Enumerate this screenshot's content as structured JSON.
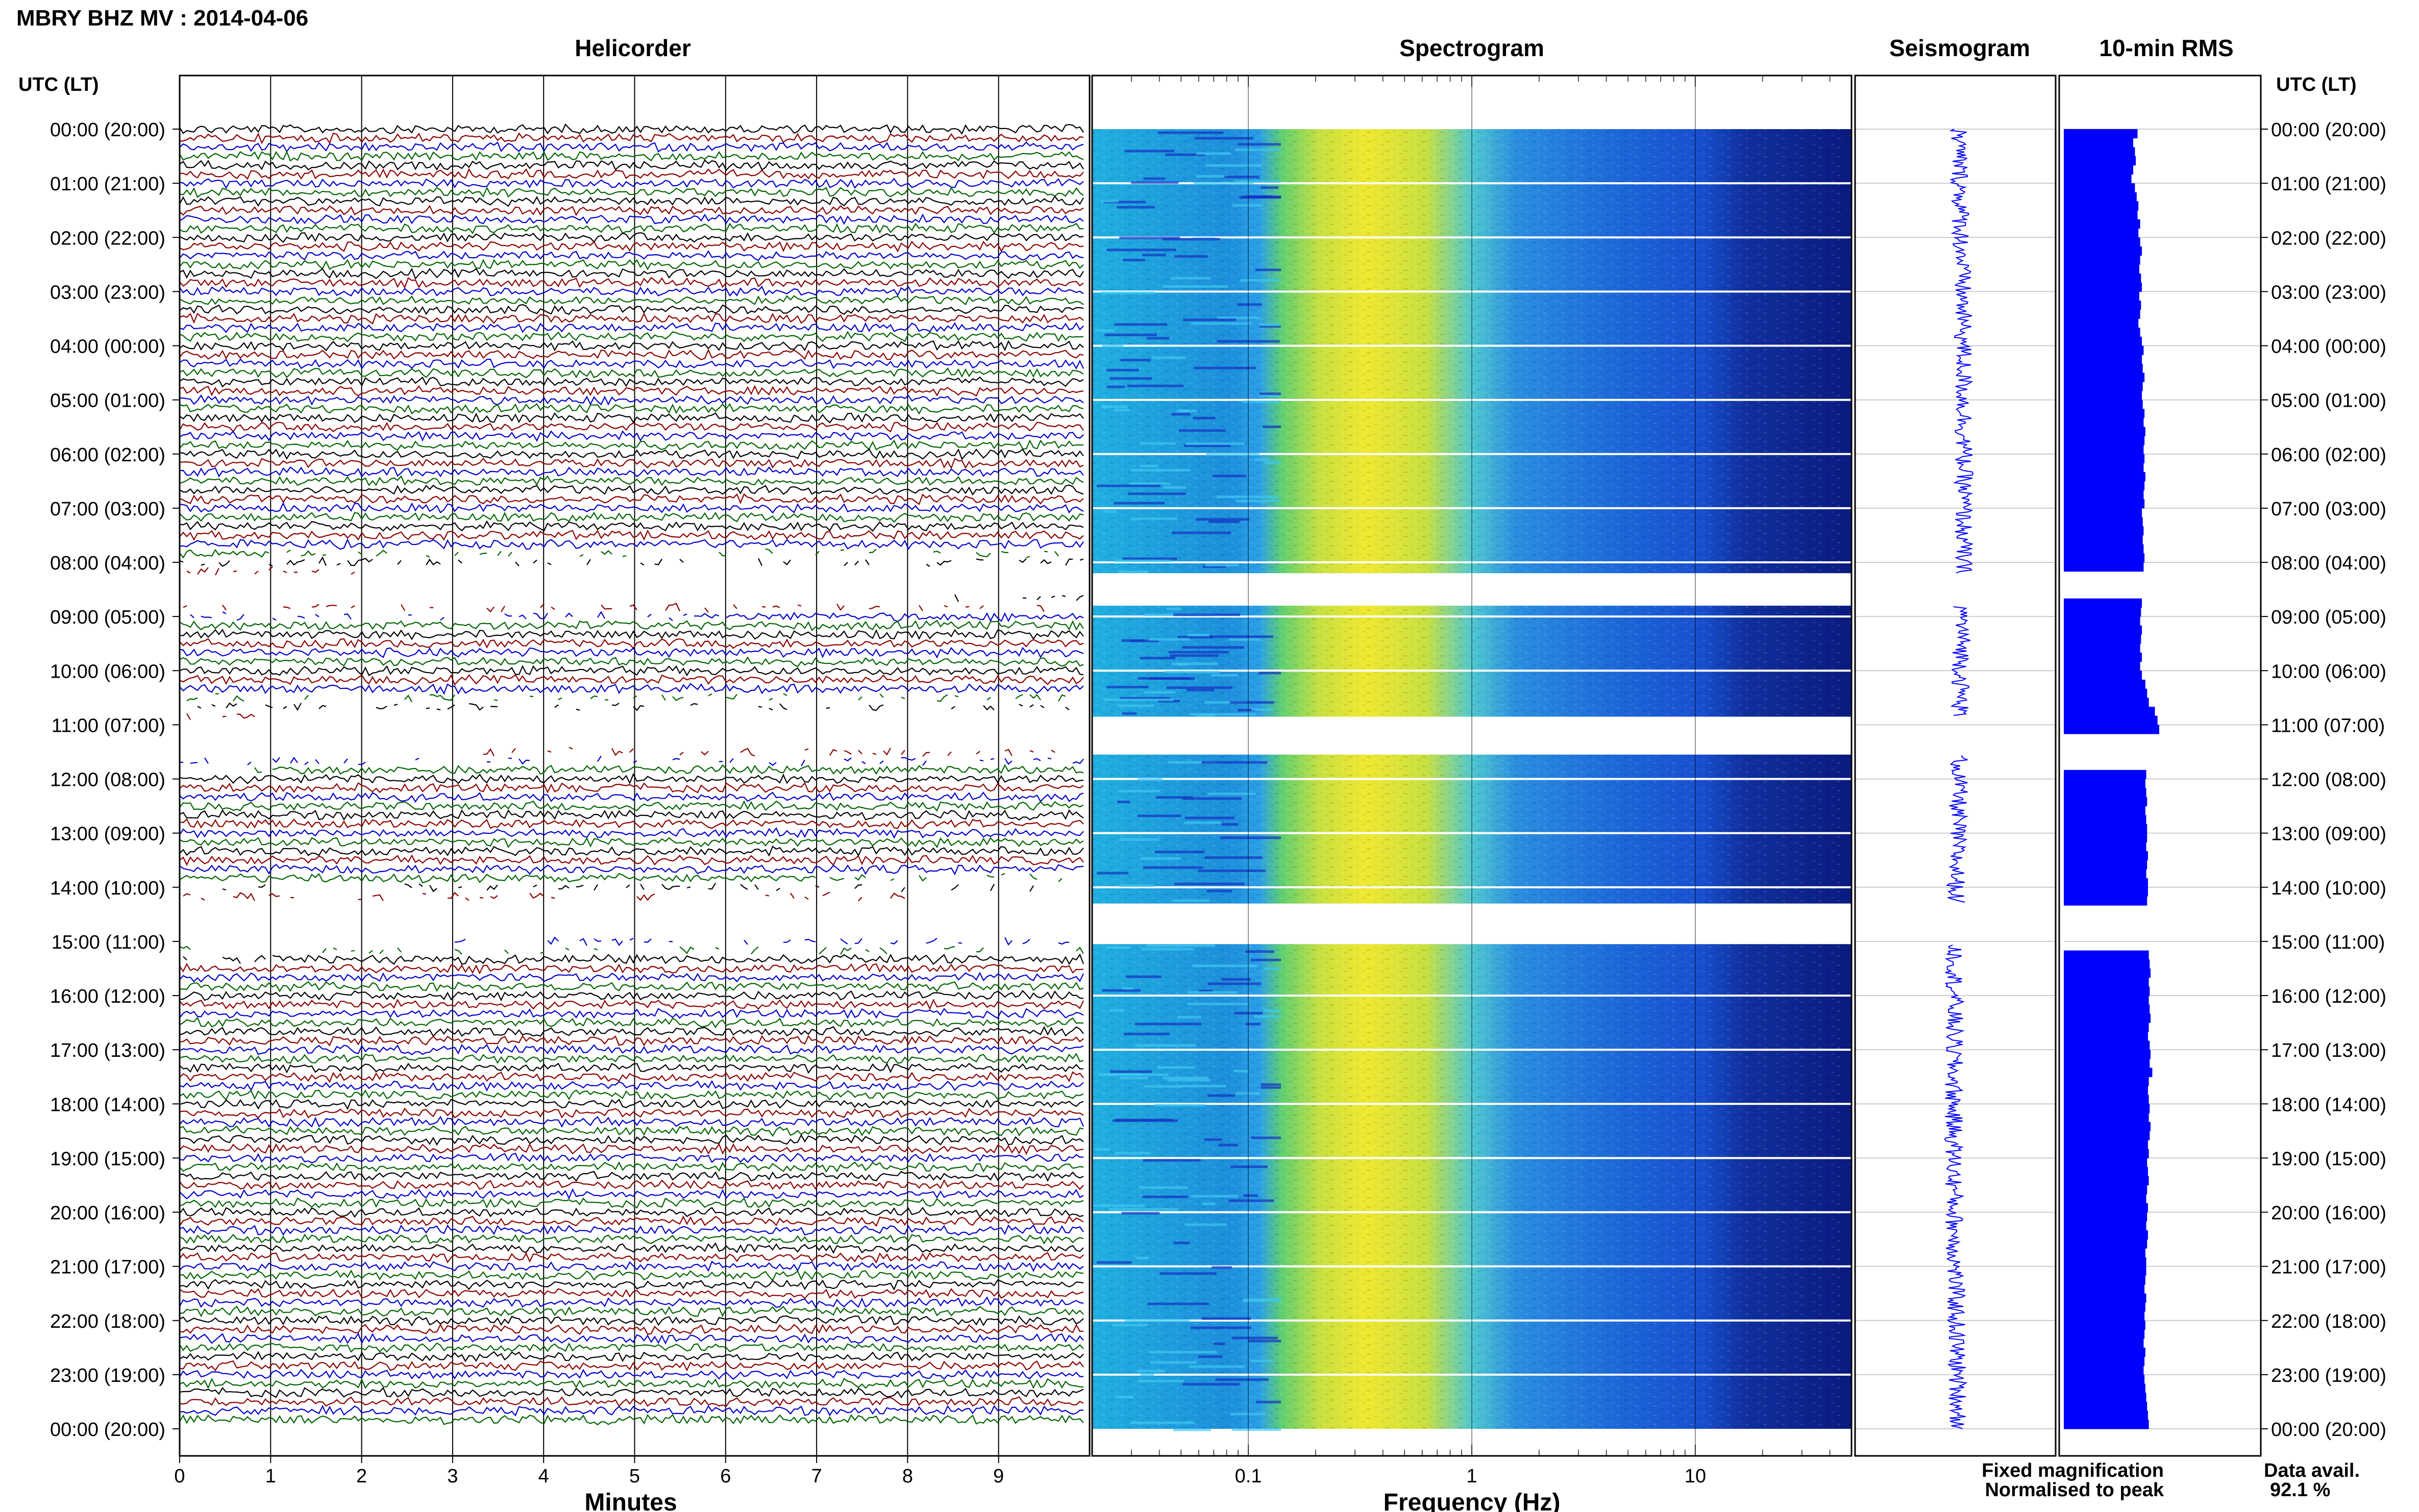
{
  "header": {
    "title": "MBRY BHZ MV : 2014-04-06",
    "utc_label_left": "UTC (LT)",
    "utc_label_right": "UTC (LT)"
  },
  "panels": {
    "helicorder": "Helicorder",
    "spectrogram": "Spectrogram",
    "seismogram": "Seismogram",
    "rms": "10-min RMS"
  },
  "axes": {
    "helicorder_xlabel": "Minutes",
    "spectrogram_xlabel": "Frequency (Hz)"
  },
  "footer": {
    "fixed_magnification": "Fixed magnification",
    "normalised_to_peak": "Normalised to peak",
    "data_avail_label": "Data avail.",
    "data_avail_value": "92.1 %"
  },
  "colors": {
    "trace_black": "#000000",
    "trace_red": "#8b0000",
    "trace_blue": "#0000cd",
    "trace_green": "#006400",
    "rms_bar": "#0000ff",
    "fixed_magnification": "#0000ff",
    "normalised_to_peak": "#ff0000"
  },
  "chart_data": {
    "type": "heatmap",
    "time_labels": [
      "00:00 (20:00)",
      "01:00 (21:00)",
      "02:00 (22:00)",
      "03:00 (23:00)",
      "04:00 (00:00)",
      "05:00 (01:00)",
      "06:00 (02:00)",
      "07:00 (03:00)",
      "08:00 (04:00)",
      "09:00 (05:00)",
      "10:00 (06:00)",
      "11:00 (07:00)",
      "12:00 (08:00)",
      "13:00 (09:00)",
      "14:00 (10:00)",
      "15:00 (11:00)",
      "16:00 (12:00)",
      "17:00 (13:00)",
      "18:00 (14:00)",
      "19:00 (15:00)",
      "20:00 (16:00)",
      "21:00 (17:00)",
      "22:00 (18:00)",
      "23:00 (19:00)",
      "00:00 (20:00)"
    ],
    "helicorder": {
      "x_ticks": [
        "0",
        "1",
        "2",
        "3",
        "4",
        "5",
        "6",
        "7",
        "8",
        "9"
      ],
      "xlim_minutes": [
        0,
        10
      ],
      "traces_per_hour": 6,
      "trace_colors_cycle": [
        "black",
        "red",
        "blue",
        "green"
      ]
    },
    "spectrogram": {
      "x_scale": "log",
      "x_ticks": [
        "0.1",
        "1",
        "10"
      ],
      "x_tick_values": [
        0.1,
        1,
        10
      ],
      "xlim_hz": [
        0.02,
        50
      ]
    },
    "gaps_hours": [
      [
        8.2,
        8.8
      ],
      [
        10.85,
        11.55
      ],
      [
        14.3,
        15.05
      ]
    ],
    "rms_10min": {
      "bins_per_hour": 6,
      "relative_values": [
        0.85,
        0.8,
        0.82,
        0.83,
        0.8,
        0.78,
        0.82,
        0.84,
        0.86,
        0.85,
        0.88,
        0.86,
        0.88,
        0.9,
        0.88,
        0.87,
        0.89,
        0.9,
        0.87,
        0.89,
        0.88,
        0.86,
        0.88,
        0.9,
        0.92,
        0.9,
        0.91,
        0.93,
        0.91,
        0.9,
        0.91,
        0.93,
        0.92,
        0.94,
        0.93,
        0.92,
        0.93,
        0.92,
        0.94,
        0.93,
        0.92,
        0.93,
        0.9,
        0.91,
        0.92,
        0.91,
        0.92,
        0.93,
        0.92,
        0.0,
        0.0,
        0.0,
        0.9,
        0.89,
        0.88,
        0.9,
        0.89,
        0.88,
        0.9,
        0.88,
        0.9,
        0.94,
        0.96,
        0.98,
        1.05,
        1.08,
        1.1,
        0.0,
        0.0,
        0.0,
        0.0,
        0.95,
        0.94,
        0.95,
        0.96,
        0.94,
        0.95,
        0.96,
        0.96,
        0.95,
        0.97,
        0.96,
        0.95,
        0.97,
        0.97,
        0.96,
        0.0,
        0.0,
        0.0,
        0.0,
        0.0,
        0.98,
        0.99,
        1.0,
        0.98,
        0.99,
        0.98,
        0.99,
        1.0,
        0.98,
        0.97,
        0.99,
        1.0,
        0.99,
        1.02,
        0.98,
        0.97,
        0.98,
        0.99,
        0.98,
        1.0,
        0.99,
        0.97,
        0.98,
        0.96,
        0.97,
        0.98,
        0.96,
        0.95,
        0.97,
        0.96,
        0.95,
        0.97,
        0.96,
        0.94,
        0.95,
        0.95,
        0.94,
        0.93,
        0.95,
        0.94,
        0.93,
        0.94,
        0.93,
        0.92,
        0.94,
        0.93,
        0.92,
        0.93,
        0.94,
        0.95,
        0.96,
        0.97,
        0.98
      ]
    }
  }
}
